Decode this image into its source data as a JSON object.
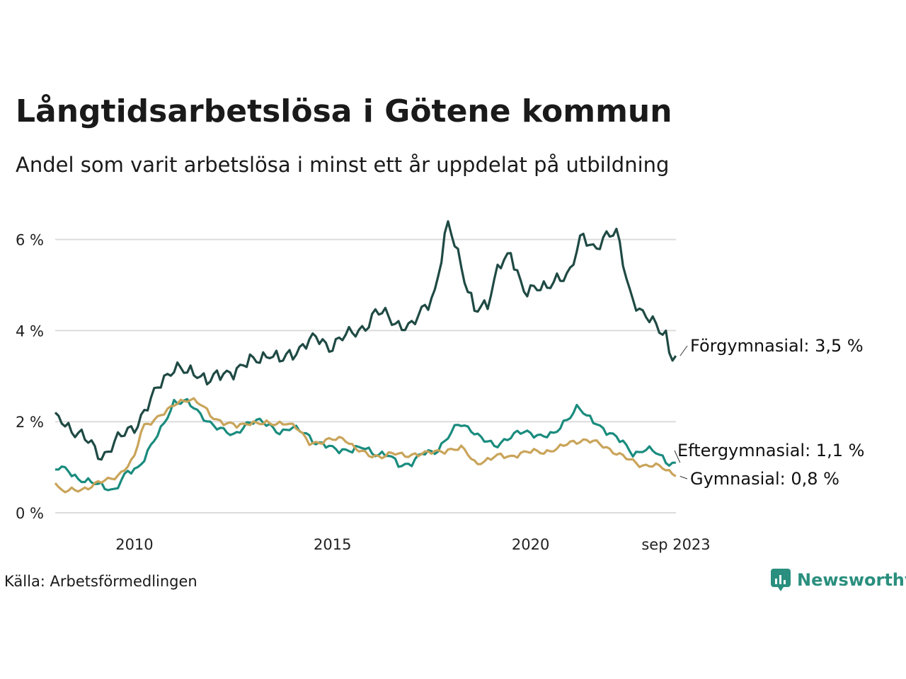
{
  "title": "Långtidsarbetslösa i Götene kommun",
  "subtitle": "Andel som varit arbetslösa i minst ett år uppdelat på utbildning",
  "source": "Källa: Arbetsförmedlingen",
  "brand": "Newsworthy",
  "chart_data": {
    "type": "line",
    "title": "Långtidsarbetslösa i Götene kommun",
    "subtitle": "Andel som varit arbetslösa i minst ett år uppdelat på utbildning",
    "xlabel": "",
    "ylabel": "",
    "ylim": [
      0,
      6.6
    ],
    "xlim": [
      2008.0,
      2023.67
    ],
    "grid": true,
    "y_ticks": [
      {
        "value": 0,
        "label": "0 %"
      },
      {
        "value": 2,
        "label": "2 %"
      },
      {
        "value": 4,
        "label": "4 %"
      },
      {
        "value": 6,
        "label": "6 %"
      }
    ],
    "x_ticks": [
      {
        "value": 2010,
        "label": "2010"
      },
      {
        "value": 2015,
        "label": "2015"
      },
      {
        "value": 2020,
        "label": "2020"
      },
      {
        "value": 2023.67,
        "label": "sep 2023"
      }
    ],
    "series": [
      {
        "name": "Förgymnasial",
        "label": "Förgymnasial: 3,5 %",
        "color": "#1f4a44",
        "anchors": [
          [
            2008.0,
            2.2
          ],
          [
            2008.3,
            1.95
          ],
          [
            2008.6,
            1.7
          ],
          [
            2008.9,
            1.5
          ],
          [
            2009.2,
            1.25
          ],
          [
            2009.5,
            1.5
          ],
          [
            2009.8,
            1.8
          ],
          [
            2010.1,
            2.0
          ],
          [
            2010.4,
            2.4
          ],
          [
            2010.7,
            2.95
          ],
          [
            2011.0,
            3.2
          ],
          [
            2011.3,
            3.05
          ],
          [
            2011.6,
            3.1
          ],
          [
            2011.9,
            2.9
          ],
          [
            2012.2,
            3.0
          ],
          [
            2012.5,
            3.15
          ],
          [
            2012.8,
            3.25
          ],
          [
            2013.1,
            3.35
          ],
          [
            2013.4,
            3.55
          ],
          [
            2013.7,
            3.3
          ],
          [
            2014.0,
            3.5
          ],
          [
            2014.3,
            3.75
          ],
          [
            2014.6,
            3.8
          ],
          [
            2014.9,
            3.65
          ],
          [
            2015.2,
            3.85
          ],
          [
            2015.5,
            3.9
          ],
          [
            2015.8,
            4.1
          ],
          [
            2016.1,
            4.4
          ],
          [
            2016.4,
            4.3
          ],
          [
            2016.7,
            4.15
          ],
          [
            2017.0,
            4.05
          ],
          [
            2017.3,
            4.5
          ],
          [
            2017.6,
            4.9
          ],
          [
            2017.9,
            6.3
          ],
          [
            2018.1,
            5.9
          ],
          [
            2018.3,
            5.3
          ],
          [
            2018.6,
            4.4
          ],
          [
            2018.9,
            4.5
          ],
          [
            2019.2,
            5.55
          ],
          [
            2019.5,
            5.6
          ],
          [
            2019.8,
            4.9
          ],
          [
            2020.1,
            5.0
          ],
          [
            2020.4,
            4.85
          ],
          [
            2020.7,
            5.2
          ],
          [
            2021.0,
            5.3
          ],
          [
            2021.3,
            6.05
          ],
          [
            2021.6,
            5.85
          ],
          [
            2021.9,
            6.05
          ],
          [
            2022.2,
            6.1
          ],
          [
            2022.5,
            4.9
          ],
          [
            2022.8,
            4.3
          ],
          [
            2023.1,
            4.2
          ],
          [
            2023.4,
            4.0
          ],
          [
            2023.55,
            3.3
          ],
          [
            2023.67,
            3.45
          ]
        ],
        "amplitude": 0.22
      },
      {
        "name": "Eftergymnasial",
        "label": "Eftergymnasial: 1,1 %",
        "color": "#1a8c7e",
        "anchors": [
          [
            2008.0,
            0.95
          ],
          [
            2008.3,
            0.95
          ],
          [
            2008.6,
            0.75
          ],
          [
            2008.9,
            0.65
          ],
          [
            2009.2,
            0.6
          ],
          [
            2009.5,
            0.5
          ],
          [
            2009.8,
            0.85
          ],
          [
            2010.1,
            1.0
          ],
          [
            2010.4,
            1.45
          ],
          [
            2010.7,
            1.85
          ],
          [
            2011.0,
            2.45
          ],
          [
            2011.3,
            2.45
          ],
          [
            2011.6,
            2.2
          ],
          [
            2011.9,
            2.0
          ],
          [
            2012.2,
            1.8
          ],
          [
            2012.5,
            1.7
          ],
          [
            2012.8,
            1.95
          ],
          [
            2013.1,
            2.0
          ],
          [
            2013.4,
            1.95
          ],
          [
            2013.7,
            1.75
          ],
          [
            2014.0,
            1.85
          ],
          [
            2014.3,
            1.8
          ],
          [
            2014.6,
            1.5
          ],
          [
            2014.9,
            1.45
          ],
          [
            2015.2,
            1.4
          ],
          [
            2015.5,
            1.35
          ],
          [
            2015.8,
            1.45
          ],
          [
            2016.1,
            1.3
          ],
          [
            2016.4,
            1.25
          ],
          [
            2016.7,
            1.05
          ],
          [
            2017.0,
            1.1
          ],
          [
            2017.3,
            1.3
          ],
          [
            2017.6,
            1.35
          ],
          [
            2017.9,
            1.65
          ],
          [
            2018.2,
            1.95
          ],
          [
            2018.5,
            1.85
          ],
          [
            2018.8,
            1.6
          ],
          [
            2019.1,
            1.45
          ],
          [
            2019.4,
            1.65
          ],
          [
            2019.7,
            1.75
          ],
          [
            2020.0,
            1.75
          ],
          [
            2020.3,
            1.7
          ],
          [
            2020.6,
            1.7
          ],
          [
            2020.9,
            2.05
          ],
          [
            2021.2,
            2.35
          ],
          [
            2021.4,
            2.1
          ],
          [
            2021.7,
            1.95
          ],
          [
            2022.0,
            1.75
          ],
          [
            2022.3,
            1.55
          ],
          [
            2022.6,
            1.3
          ],
          [
            2022.9,
            1.4
          ],
          [
            2023.2,
            1.3
          ],
          [
            2023.5,
            1.1
          ],
          [
            2023.67,
            1.1
          ]
        ],
        "amplitude": 0.1
      },
      {
        "name": "Gymnasial",
        "label": "Gymnasial: 0,8 %",
        "color": "#c9a45a",
        "anchors": [
          [
            2008.0,
            0.65
          ],
          [
            2008.2,
            0.45
          ],
          [
            2008.5,
            0.5
          ],
          [
            2008.8,
            0.55
          ],
          [
            2009.1,
            0.65
          ],
          [
            2009.4,
            0.75
          ],
          [
            2009.7,
            0.9
          ],
          [
            2010.0,
            1.2
          ],
          [
            2010.2,
            1.9
          ],
          [
            2010.5,
            2.05
          ],
          [
            2010.8,
            2.2
          ],
          [
            2011.1,
            2.45
          ],
          [
            2011.4,
            2.5
          ],
          [
            2011.7,
            2.35
          ],
          [
            2012.0,
            2.1
          ],
          [
            2012.3,
            1.95
          ],
          [
            2012.6,
            1.9
          ],
          [
            2012.9,
            2.0
          ],
          [
            2013.2,
            1.95
          ],
          [
            2013.5,
            1.95
          ],
          [
            2013.8,
            2.0
          ],
          [
            2014.1,
            1.85
          ],
          [
            2014.4,
            1.55
          ],
          [
            2014.7,
            1.55
          ],
          [
            2015.0,
            1.6
          ],
          [
            2015.3,
            1.65
          ],
          [
            2015.6,
            1.4
          ],
          [
            2015.9,
            1.25
          ],
          [
            2016.2,
            1.25
          ],
          [
            2016.5,
            1.3
          ],
          [
            2016.8,
            1.25
          ],
          [
            2017.1,
            1.3
          ],
          [
            2017.4,
            1.3
          ],
          [
            2017.7,
            1.35
          ],
          [
            2018.0,
            1.4
          ],
          [
            2018.3,
            1.4
          ],
          [
            2018.6,
            1.1
          ],
          [
            2018.9,
            1.15
          ],
          [
            2019.2,
            1.25
          ],
          [
            2019.5,
            1.25
          ],
          [
            2019.8,
            1.3
          ],
          [
            2020.1,
            1.35
          ],
          [
            2020.4,
            1.35
          ],
          [
            2020.7,
            1.4
          ],
          [
            2021.0,
            1.55
          ],
          [
            2021.3,
            1.6
          ],
          [
            2021.6,
            1.55
          ],
          [
            2021.9,
            1.45
          ],
          [
            2022.2,
            1.3
          ],
          [
            2022.5,
            1.15
          ],
          [
            2022.8,
            1.05
          ],
          [
            2023.1,
            1.05
          ],
          [
            2023.4,
            0.95
          ],
          [
            2023.67,
            0.8
          ]
        ],
        "amplitude": 0.08
      }
    ]
  }
}
